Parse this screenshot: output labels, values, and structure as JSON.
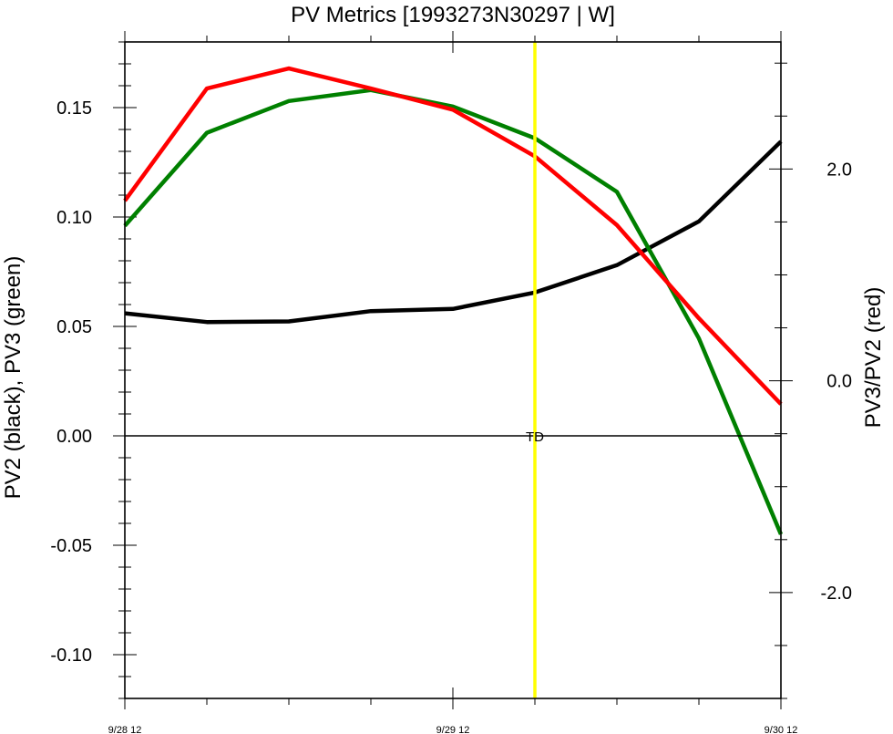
{
  "chart_data": {
    "type": "line",
    "title": "PV Metrics [1993273N30297 | W]",
    "xlabel": "",
    "ylabel_left": "PV2 (black), PV3 (green)",
    "ylabel_right": "PV3/PV2 (red)",
    "x": [
      0,
      1,
      2,
      3,
      4,
      5,
      6,
      7,
      8
    ],
    "xlim": [
      0,
      8
    ],
    "x_ticks": [
      {
        "x": 0,
        "label": "9/28 12"
      },
      {
        "x": 4,
        "label": "9/29 12"
      },
      {
        "x": 8,
        "label": "9/30 12"
      }
    ],
    "ylim_left": [
      -0.12,
      0.18
    ],
    "yticks_left": [
      {
        "value": 0.15,
        "label": "0.15"
      },
      {
        "value": 0.1,
        "label": "0.10"
      },
      {
        "value": 0.05,
        "label": "0.05"
      },
      {
        "value": 0.0,
        "label": "0.00"
      },
      {
        "value": -0.05,
        "label": "-0.05"
      },
      {
        "value": -0.1,
        "label": "-0.10"
      }
    ],
    "ylim_right": [
      -3.0,
      3.2
    ],
    "yticks_right": [
      {
        "value": 2.0,
        "label": "2.0"
      },
      {
        "value": 0.0,
        "label": "0.0"
      },
      {
        "value": -2.0,
        "label": "-2.0"
      }
    ],
    "series": [
      {
        "color": "#000000",
        "axis": "left",
        "values": [
          0.056,
          0.052,
          0.0523,
          0.057,
          0.058,
          0.0655,
          0.078,
          0.098,
          0.1345
        ]
      },
      {
        "color": "#008000",
        "axis": "left",
        "values": [
          0.096,
          0.1385,
          0.153,
          0.158,
          0.1505,
          0.136,
          0.1115,
          0.0445,
          -0.045
        ]
      },
      {
        "color": "#ff0000",
        "axis": "right",
        "values": [
          1.7,
          2.76,
          2.95,
          2.76,
          2.56,
          2.12,
          1.47,
          0.59,
          -0.22
        ]
      }
    ],
    "zero_line": {
      "value": 0.0,
      "axis": "left"
    },
    "marker_line": {
      "x": 5.0,
      "color": "#ffff00",
      "label": "TD"
    },
    "grid": false,
    "legend": "none"
  }
}
